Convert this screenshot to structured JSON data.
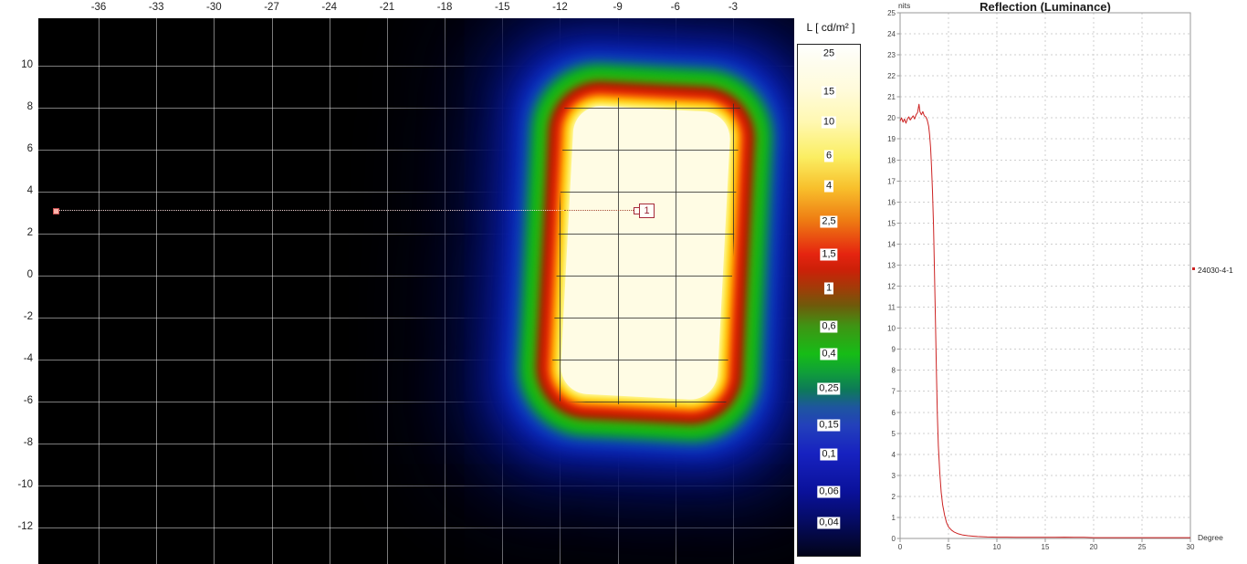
{
  "chart_data": [
    {
      "type": "heatmap",
      "name": "luminance-false-color-map",
      "x_ticks": [
        -36,
        -33,
        -30,
        -27,
        -24,
        -21,
        -18,
        -15,
        -12,
        -9,
        -6,
        -3
      ],
      "y_ticks": [
        10,
        8,
        6,
        4,
        2,
        0,
        -2,
        -4,
        -6,
        -8,
        -10,
        -12
      ],
      "x_range_deg": [
        -39.1,
        0.2
      ],
      "y_range_deg": [
        -13.7,
        12.3
      ],
      "grid": true,
      "background_cd_m2": 0.04,
      "bright_region": {
        "shape": "rounded-rectangle",
        "x_extent_deg": [
          -12.2,
          -3.3
        ],
        "y_extent_deg": [
          -6.0,
          8.4
        ],
        "tilt_deg": 3,
        "interior_cd_m2": 25,
        "ring_levels_cd_m2": {
          "yellow": 10,
          "red": 2,
          "green": 0.5,
          "blue": 0.1
        }
      },
      "marker": {
        "id": "1",
        "x_deg": -7.5,
        "y_deg": 3.1,
        "leader_from_x_deg": -38
      },
      "colorbar": {
        "title": "L [ cd/m² ]",
        "tick_labels": [
          "25",
          "15",
          "10",
          "6",
          "4",
          "2,5",
          "1,5",
          "1",
          "0,6",
          "0,4",
          "0,25",
          "0,15",
          "0,1",
          "0,06",
          "0,04"
        ],
        "tick_values": [
          25,
          15,
          10,
          6,
          4,
          2.5,
          1.5,
          1,
          0.6,
          0.4,
          0.25,
          0.15,
          0.1,
          0.06,
          0.04
        ],
        "gradient": [
          [
            0,
            "#ffffff"
          ],
          [
            2,
            "#fefdf4"
          ],
          [
            9,
            "#fffbda"
          ],
          [
            15,
            "#fff8b2"
          ],
          [
            22,
            "#fbee62"
          ],
          [
            28,
            "#f8c02c"
          ],
          [
            34.5,
            "#ee7a12"
          ],
          [
            41,
            "#e52410"
          ],
          [
            44,
            "#cc2008"
          ],
          [
            47.5,
            "#a33a08"
          ],
          [
            51,
            "#6f5a0a"
          ],
          [
            55,
            "#3f9414"
          ],
          [
            60.5,
            "#16bc16"
          ],
          [
            64,
            "#10a038"
          ],
          [
            67.5,
            "#0d7a58"
          ],
          [
            71,
            "#1e55a0"
          ],
          [
            74.5,
            "#2340bb"
          ],
          [
            80,
            "#1722c0"
          ],
          [
            87.5,
            "#0a119a"
          ],
          [
            93.5,
            "#050b60"
          ],
          [
            100,
            "#020418"
          ]
        ]
      }
    },
    {
      "type": "line",
      "title": "Reflection (Luminance)",
      "y_unit": "nits",
      "x_unit": "Degree",
      "xlim": [
        0,
        30
      ],
      "ylim": [
        0,
        25
      ],
      "x_ticks": [
        0,
        5,
        10,
        15,
        20,
        25,
        30
      ],
      "y_tick_step": 1,
      "grid": "dashed",
      "legend_position": "right",
      "series": [
        {
          "name": "24030-4-1",
          "color": "#cc2222",
          "points": [
            [
              0,
              19.85
            ],
            [
              0.15,
              20.0
            ],
            [
              0.3,
              19.8
            ],
            [
              0.45,
              19.95
            ],
            [
              0.6,
              19.75
            ],
            [
              0.75,
              19.95
            ],
            [
              0.9,
              20.05
            ],
            [
              1.05,
              19.9
            ],
            [
              1.2,
              20.0
            ],
            [
              1.35,
              20.1
            ],
            [
              1.5,
              19.95
            ],
            [
              1.65,
              20.15
            ],
            [
              1.8,
              20.25
            ],
            [
              1.95,
              20.65
            ],
            [
              2.05,
              20.3
            ],
            [
              2.2,
              20.15
            ],
            [
              2.35,
              20.3
            ],
            [
              2.5,
              20.1
            ],
            [
              2.65,
              20.05
            ],
            [
              2.8,
              19.9
            ],
            [
              2.95,
              19.6
            ],
            [
              3.05,
              19.2
            ],
            [
              3.15,
              18.6
            ],
            [
              3.25,
              17.7
            ],
            [
              3.35,
              16.5
            ],
            [
              3.45,
              14.9
            ],
            [
              3.55,
              12.8
            ],
            [
              3.65,
              10.4
            ],
            [
              3.75,
              7.9
            ],
            [
              3.85,
              5.9
            ],
            [
              3.95,
              4.4
            ],
            [
              4.1,
              3.1
            ],
            [
              4.25,
              2.2
            ],
            [
              4.4,
              1.6
            ],
            [
              4.6,
              1.1
            ],
            [
              4.8,
              0.75
            ],
            [
              5.0,
              0.55
            ],
            [
              5.3,
              0.4
            ],
            [
              5.6,
              0.3
            ],
            [
              6.0,
              0.22
            ],
            [
              6.5,
              0.16
            ],
            [
              7.0,
              0.13
            ],
            [
              7.5,
              0.11
            ],
            [
              8.0,
              0.09
            ],
            [
              9.0,
              0.07
            ],
            [
              10,
              0.06
            ],
            [
              11,
              0.06
            ],
            [
              12,
              0.05
            ],
            [
              13,
              0.05
            ],
            [
              14,
              0.05
            ],
            [
              15,
              0.05
            ],
            [
              16,
              0.05
            ],
            [
              17,
              0.06
            ],
            [
              18,
              0.05
            ],
            [
              19,
              0.05
            ],
            [
              20,
              0.04
            ],
            [
              22,
              0.04
            ],
            [
              24,
              0.04
            ],
            [
              26,
              0.04
            ],
            [
              28,
              0.04
            ],
            [
              30,
              0.04
            ]
          ]
        }
      ]
    }
  ]
}
